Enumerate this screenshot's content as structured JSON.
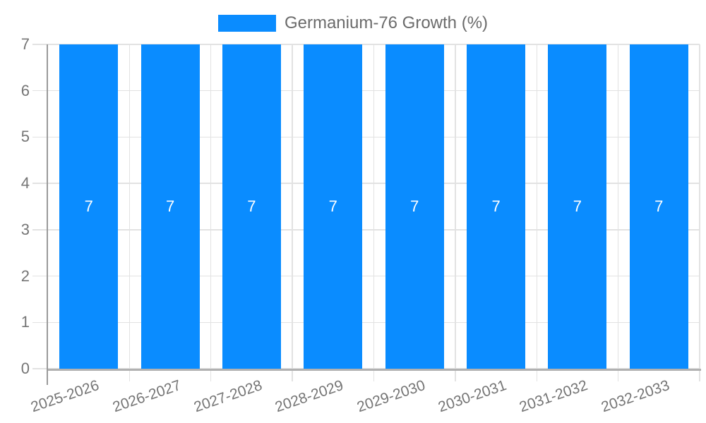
{
  "legend": {
    "label": "Germanium-76 Growth (%)"
  },
  "chart_data": {
    "type": "bar",
    "title": "Germanium-76 Growth (%)",
    "categories": [
      "2025-2026",
      "2026-2027",
      "2027-2028",
      "2028-2029",
      "2029-2030",
      "2030-2031",
      "2031-2032",
      "2032-2033"
    ],
    "values": [
      7,
      7,
      7,
      7,
      7,
      7,
      7,
      7
    ],
    "xlabel": "",
    "ylabel": "",
    "ylim": [
      0,
      7
    ],
    "yticks": [
      0,
      1,
      2,
      3,
      4,
      5,
      6,
      7
    ],
    "grid": true,
    "legend_position": "top-center",
    "x_tick_rotation_deg": -19,
    "colors": {
      "bar": "#0a8cff",
      "bar_label": "#ffffff",
      "axis_text": "#757575",
      "legend_text": "#6b6b6b",
      "gridline": "#e2e2e2",
      "y_axis_line": "#9a9a9a",
      "baseline": "#b1b1b1",
      "background": "#ffffff"
    }
  }
}
